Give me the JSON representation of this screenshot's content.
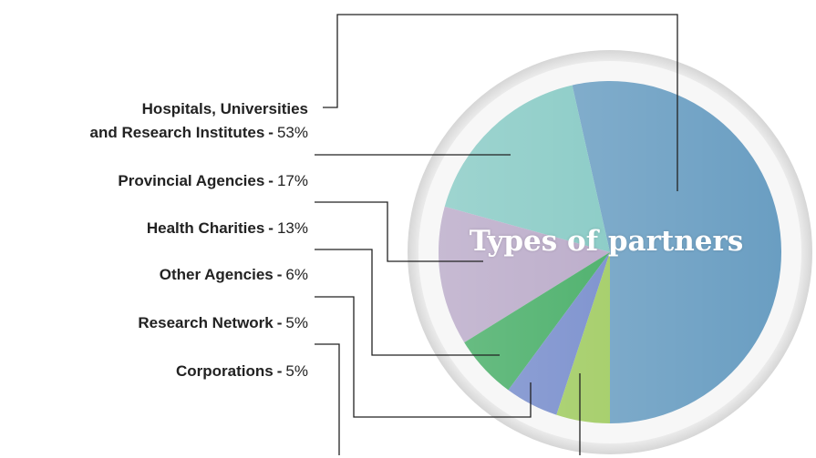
{
  "chart_data": {
    "type": "pie",
    "title": "Types of partners",
    "categories": [
      "Hospitals, Universities\nand Research Institutes",
      "Provincial Agencies",
      "Health Charities",
      "Other Agencies",
      "Research Network",
      "Corporations"
    ],
    "values": [
      53,
      17,
      13,
      6,
      5,
      5
    ],
    "value_labels": [
      "53%",
      "17%",
      "13%",
      "6%",
      "5%",
      "5%"
    ],
    "label_separator": "-",
    "colors": [
      "#6a9ec2",
      "#7ec6c0",
      "#b4a3c4",
      "#3aa85c",
      "#6f86c9",
      "#9cc95a"
    ]
  }
}
